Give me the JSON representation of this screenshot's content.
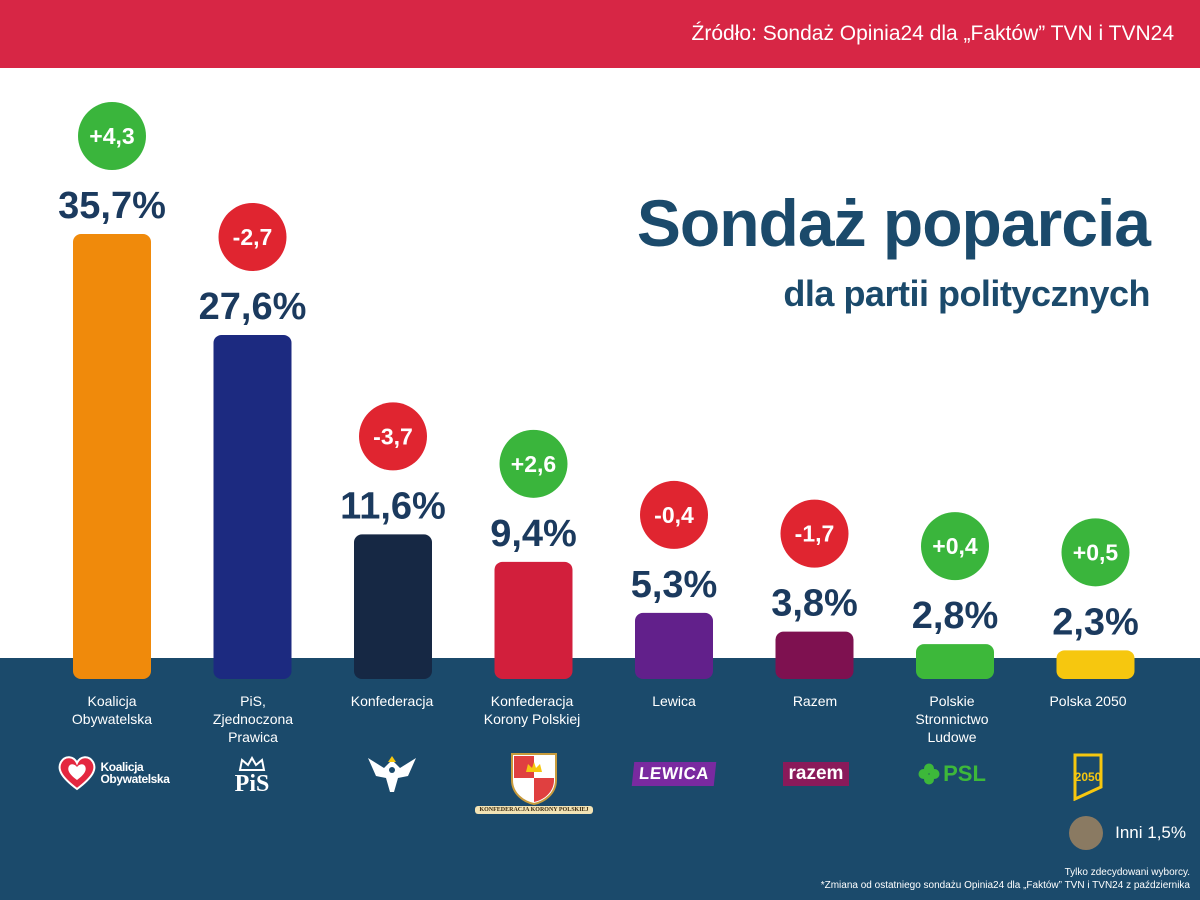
{
  "header": {
    "source": "Źródło: Sondaż Opinia24 dla „Faktów” TVN i TVN24"
  },
  "title": "Sondaż poparcia",
  "subtitle": "dla partii politycznych",
  "chart_data": {
    "type": "bar",
    "title": "Sondaż poparcia dla partii politycznych",
    "unit": "%",
    "ylim": [
      0,
      40
    ],
    "categories": [
      "Koalicja Obywatelska",
      "PiS, Zjednoczona Prawica",
      "Konfederacja",
      "Konfederacja Korony Polskiej",
      "Lewica",
      "Razem",
      "Polskie Stronnictwo Ludowe",
      "Polska 2050"
    ],
    "values": [
      35.7,
      27.6,
      11.6,
      9.4,
      5.3,
      3.8,
      2.8,
      2.3
    ],
    "value_labels": [
      "35,7%",
      "27,6%",
      "11,6%",
      "9,4%",
      "5,3%",
      "3,8%",
      "2,8%",
      "2,3%"
    ],
    "changes": [
      4.3,
      -2.7,
      -3.7,
      2.6,
      -0.4,
      -1.7,
      0.4,
      0.5
    ],
    "change_labels": [
      "+4,3",
      "-2,7",
      "-3,7",
      "+2,6",
      "-0,4",
      "-1,7",
      "+0,4",
      "+0,5"
    ],
    "colors": [
      "#f08a0b",
      "#1c2a80",
      "#162844",
      "#d21f3c",
      "#62208b",
      "#7e1150",
      "#3db83a",
      "#f6c70f"
    ],
    "positive_color": "#3ab53c",
    "negative_color": "#e02530",
    "others": {
      "label": "Inni 1,5%",
      "value": 1.5,
      "color": "#8a7a62"
    }
  },
  "labels": [
    [
      "Koalicja",
      "Obywatelska"
    ],
    [
      "PiS,",
      "Zjednoczona",
      "Prawica"
    ],
    [
      "Konfederacja"
    ],
    [
      "Konfederacja",
      "Korony Polskiej"
    ],
    [
      "Lewica"
    ],
    [
      "Razem"
    ],
    [
      "Polskie",
      "Stronnictwo",
      "Ludowe"
    ],
    [
      "Polska 2050"
    ]
  ],
  "logos": {
    "ko": {
      "text1": "Koalicja",
      "text2": "Obywatelska",
      "icon": "heart-icon"
    },
    "pis": {
      "text": "PiS",
      "icon": "crown-icon"
    },
    "konfederacja": {
      "icon": "eagle-icon"
    },
    "kkp": {
      "icon": "coat-of-arms-icon",
      "ribbon": "KONFEDERACJA KORONY POLSKIEJ"
    },
    "lewica": {
      "text": "LEWICA"
    },
    "razem": {
      "text": "razem"
    },
    "psl": {
      "text": "PSL",
      "icon": "clover-icon"
    },
    "polska2050": {
      "text": "2050",
      "icon": "polska2050-icon"
    }
  },
  "footer": {
    "note1": "Tylko zdecydowani wyborcy.",
    "note2": "*Zmiana od ostatniego sondażu Opinia24 dla „Faktów” TVN i TVN24 z października"
  }
}
